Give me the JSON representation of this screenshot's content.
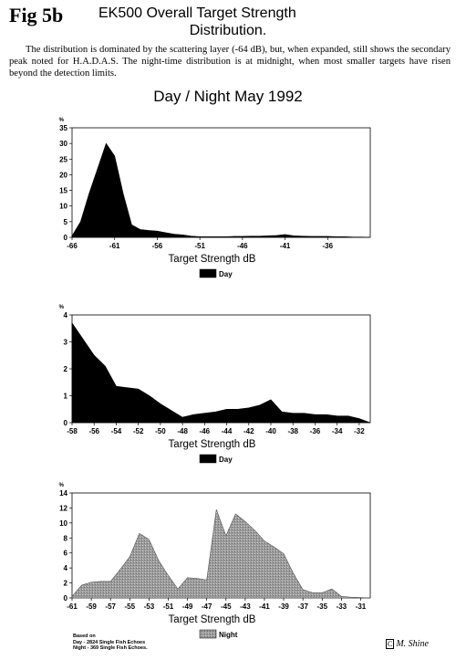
{
  "header": {
    "fig_label": "Fig 5b",
    "title_line1": "EK500 Overall Target Strength",
    "title_line2": "Distribution.",
    "description": "The distribution is dominated by the scattering layer (-64 dB), but, when expanded, still shows the secondary peak noted for H.A.D.A.S. The night-time distribution is at midnight, when most smaller targets have risen beyond the detection limits.",
    "subtitle": "Day / Night May 1992"
  },
  "chart_data": [
    {
      "type": "area",
      "unit_label": "%",
      "xlabel": "Target Strength dB",
      "legend": "Day",
      "legend_placement": "bottom-center",
      "series_color": "#000000",
      "xlim": [
        -66,
        -31
      ],
      "ylim": [
        0,
        35
      ],
      "x_ticks": [
        -66,
        -61,
        -56,
        -51,
        -46,
        -41,
        -36
      ],
      "y_ticks": [
        0,
        5,
        10,
        15,
        20,
        25,
        30,
        35
      ],
      "x": [
        -66,
        -65,
        -64,
        -63,
        -62,
        -61,
        -60,
        -59,
        -58,
        -57,
        -56,
        -55,
        -54,
        -53,
        -52,
        -51,
        -50,
        -49,
        -48,
        -47,
        -46,
        -45,
        -44,
        -43,
        -42,
        -41,
        -40,
        -39,
        -38,
        -37,
        -36,
        -35,
        -34,
        -33,
        -32,
        -31
      ],
      "y": [
        0.5,
        5,
        14,
        22,
        30,
        26,
        14,
        4,
        2.5,
        2.2,
        2,
        1.5,
        1,
        0.8,
        0.4,
        0.2,
        0.2,
        0.2,
        0.2,
        0.3,
        0.3,
        0.4,
        0.4,
        0.5,
        0.6,
        0.9,
        0.5,
        0.4,
        0.3,
        0.3,
        0.3,
        0.2,
        0.2,
        0.1,
        0.1,
        0
      ]
    },
    {
      "type": "area",
      "unit_label": "%",
      "xlabel": "Target Strength dB",
      "legend": "Day",
      "legend_placement": "bottom-center",
      "series_color": "#000000",
      "xlim": [
        -58,
        -31
      ],
      "ylim": [
        0,
        4
      ],
      "x_ticks": [
        -58,
        -56,
        -54,
        -52,
        -50,
        -48,
        -46,
        -44,
        -42,
        -40,
        -38,
        -36,
        -34,
        -32
      ],
      "y_ticks": [
        0,
        1,
        2,
        3,
        4
      ],
      "x": [
        -58,
        -57,
        -56,
        -55,
        -54,
        -53,
        -52,
        -51,
        -50,
        -49,
        -48,
        -47,
        -46,
        -45,
        -44,
        -43,
        -42,
        -41,
        -40,
        -39,
        -38,
        -37,
        -36,
        -35,
        -34,
        -33,
        -32,
        -31
      ],
      "y": [
        3.7,
        3.1,
        2.5,
        2.1,
        1.35,
        1.3,
        1.25,
        1.0,
        0.7,
        0.45,
        0.2,
        0.3,
        0.35,
        0.4,
        0.5,
        0.5,
        0.55,
        0.65,
        0.85,
        0.4,
        0.35,
        0.35,
        0.3,
        0.3,
        0.25,
        0.25,
        0.15,
        0
      ]
    },
    {
      "type": "area",
      "unit_label": "%",
      "xlabel": "Target Strength dB",
      "legend": "Night",
      "legend_placement": "bottom-center",
      "series_color": "#9c9c9c",
      "xlim": [
        -61,
        -30
      ],
      "ylim": [
        0,
        14
      ],
      "x_ticks": [
        -61,
        -59,
        -57,
        -55,
        -53,
        -51,
        -49,
        -47,
        -45,
        -43,
        -41,
        -39,
        -37,
        -35,
        -33,
        -31
      ],
      "y_ticks": [
        0,
        2,
        4,
        6,
        8,
        10,
        12,
        14
      ],
      "x": [
        -61,
        -60,
        -59,
        -58,
        -57,
        -56,
        -55,
        -54,
        -53,
        -52,
        -51,
        -50,
        -49,
        -48,
        -47,
        -46,
        -45,
        -44,
        -43,
        -42,
        -41,
        -40,
        -39,
        -38,
        -37,
        -36,
        -35,
        -34,
        -33,
        -32,
        -31,
        -30
      ],
      "y": [
        0.2,
        1.7,
        2.1,
        2.2,
        2.2,
        3.8,
        5.5,
        8.6,
        7.8,
        5.0,
        3.0,
        1.2,
        2.7,
        2.6,
        2.4,
        11.8,
        8.3,
        11.2,
        10.2,
        9.0,
        7.6,
        6.8,
        5.9,
        3.3,
        1.1,
        0.7,
        0.7,
        1.2,
        0.2,
        0.1,
        0.05,
        0
      ]
    }
  ],
  "footnote": {
    "line1": "Based on",
    "line2": "Day - 2824 Single Fish Echoes",
    "line3": "Night - 369 Single Fish Echoes."
  },
  "signature": {
    "mark": "C",
    "name": "M. Shine"
  }
}
